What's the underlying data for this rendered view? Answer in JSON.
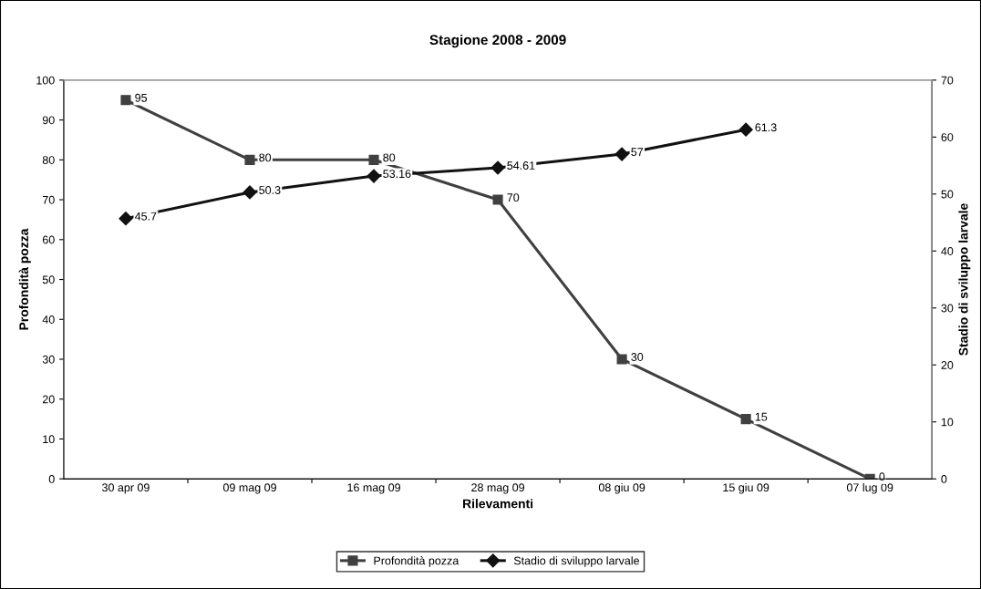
{
  "chart_data": {
    "type": "line",
    "title": "Stagione 2008 - 2009",
    "xlabel": "Rilevamenti",
    "ylabel": "Profondità pozza",
    "y2label": "Stadio di sviluppo larvale",
    "categories": [
      "30 apr 09",
      "09 mag 09",
      "16 mag 09",
      "28 mag 09",
      "08 giu 09",
      "15 giu 09",
      "07 lug 09"
    ],
    "series": [
      {
        "name": "Profondità pozza",
        "color": "#404040",
        "marker": "square",
        "values": [
          95,
          80,
          80,
          70,
          30,
          15,
          0
        ]
      },
      {
        "name": "Stadio di sviluppo larvale",
        "color": "#111111",
        "marker": "diamond",
        "axis": "y2",
        "values": [
          45.7,
          50.3,
          53.16,
          54.61,
          57,
          61.3,
          null
        ]
      }
    ],
    "ylim": [
      0,
      100
    ],
    "yticks": [
      0,
      10,
      20,
      30,
      40,
      50,
      60,
      70,
      80,
      90,
      100
    ],
    "y2lim": [
      0,
      70
    ],
    "y2ticks": [
      0,
      10,
      20,
      30,
      40,
      50,
      60,
      70
    ],
    "data_labels": true,
    "grid": false,
    "legend": "bottom",
    "line_style": "solid"
  }
}
